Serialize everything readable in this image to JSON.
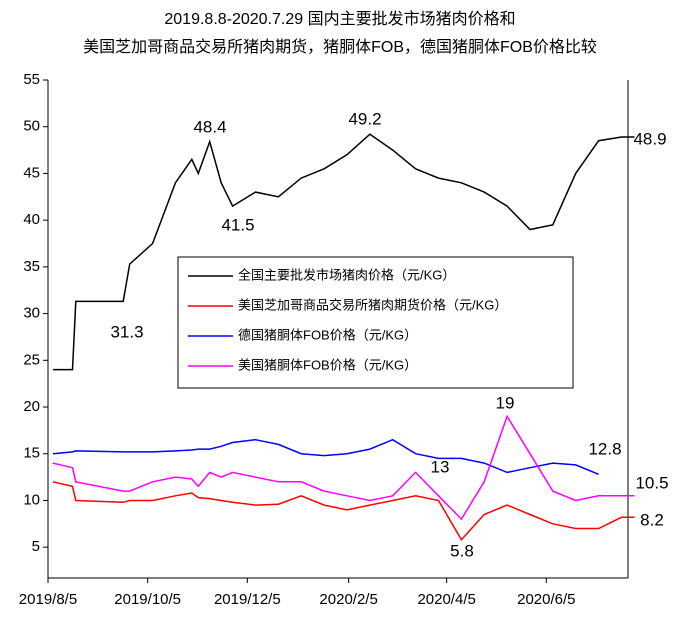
{
  "chart_data": {
    "type": "line",
    "title": [
      "2019.8.8-2020.7.29 国内主要批发市场猪肉价格和",
      "美国芝加哥商品交易所猪肉期货，猪胴体FOB，德国猪胴体FOB价格比较"
    ],
    "x": [
      "2019/8/8",
      "2019/8/20",
      "2019/8/22",
      "2019/9/20",
      "2019/9/24",
      "2019/10/8",
      "2019/10/22",
      "2019/11/1",
      "2019/11/5",
      "2019/11/12",
      "2019/11/19",
      "2019/11/26",
      "2019/12/10",
      "2019/12/24",
      "2020/1/7",
      "2020/1/21",
      "2020/2/4",
      "2020/2/18",
      "2020/3/3",
      "2020/3/17",
      "2020/3/31",
      "2020/4/14",
      "2020/4/28",
      "2020/5/12",
      "2020/5/26",
      "2020/6/9",
      "2020/6/23",
      "2020/7/7",
      "2020/7/21",
      "2020/7/29"
    ],
    "series": [
      {
        "name": "全国主要批发市场猪肉价格（元/KG）",
        "color": "#000000",
        "values": [
          24,
          24,
          31.3,
          31.3,
          35.3,
          37.5,
          44,
          46.5,
          45,
          48.4,
          44,
          41.5,
          43,
          42.5,
          44.5,
          45.5,
          47,
          49.2,
          47.5,
          45.5,
          44.5,
          44,
          43,
          41.5,
          39,
          39.5,
          45,
          48.5,
          48.9,
          48.9
        ]
      },
      {
        "name": "美国芝加哥商品交易所猪肉期货价格（元/KG）",
        "color": "#ff0000",
        "values": [
          12,
          11.5,
          10,
          9.8,
          10,
          10,
          10.5,
          10.8,
          10.3,
          10.2,
          10,
          9.8,
          9.5,
          9.6,
          10.5,
          9.5,
          9,
          9.5,
          10,
          10.5,
          10,
          5.8,
          8.5,
          9.5,
          8.5,
          7.5,
          7,
          7,
          8.2,
          8.2
        ]
      },
      {
        "name": "德国猪胴体FOB价格（元/KG）",
        "color": "#0000ff",
        "values": [
          15,
          15.2,
          15.3,
          15.2,
          15.2,
          15.2,
          15.3,
          15.4,
          15.5,
          15.5,
          15.8,
          16.2,
          16.5,
          16,
          15,
          14.8,
          15,
          15.5,
          16.5,
          15,
          14.5,
          14.5,
          14,
          13,
          13.5,
          14,
          13.8,
          12.8,
          null,
          null
        ]
      },
      {
        "name": "美国猪胴体FOB价格（元/KG）",
        "color": "#ff00ff",
        "values": [
          14,
          13.5,
          12,
          11,
          11,
          12,
          12.5,
          12.3,
          11.5,
          13,
          12.5,
          13,
          12.5,
          12,
          12,
          11,
          10.5,
          10,
          10.5,
          13,
          10.5,
          8,
          12,
          19,
          15,
          11,
          10,
          10.5,
          10.5,
          10.5
        ]
      }
    ],
    "annotations": [
      "48.4",
      "41.5",
      "49.2",
      "48.9",
      "31.3",
      "13",
      "19",
      "12.8",
      "10.5",
      "8.2",
      "5.8"
    ],
    "xlim": [
      "2019/8/5",
      "2020/7/25"
    ],
    "xticks": [
      "2019/8/5",
      "2019/10/5",
      "2019/12/5",
      "2020/2/5",
      "2020/4/5",
      "2020/6/5"
    ],
    "ylim": [
      1.7,
      55
    ],
    "yticks": [
      5,
      10,
      15,
      20,
      25,
      30,
      35,
      40,
      45,
      50,
      55
    ],
    "legend": "center"
  }
}
